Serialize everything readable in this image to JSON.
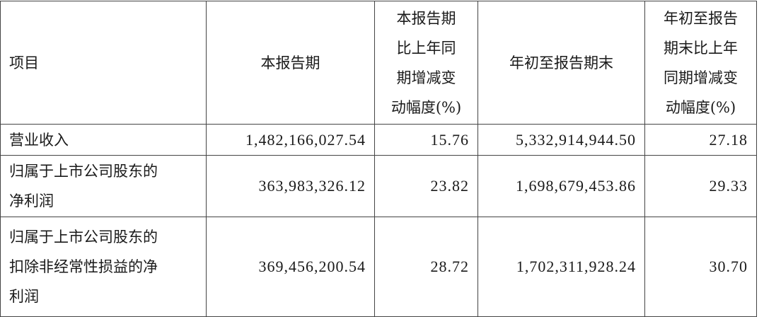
{
  "headers": [
    [
      "项目"
    ],
    [
      "本报告期"
    ],
    [
      "本报告期",
      "比上年同",
      "期增减变",
      "动幅度(%)"
    ],
    [
      "年初至报告期末"
    ],
    [
      "年初至报告",
      "期末比上年",
      "同期增减变",
      "动幅度(%)"
    ]
  ],
  "rows": [
    {
      "label": [
        "营业收入"
      ],
      "current": "1,482,166,027.54",
      "current_change": "15.76",
      "ytd": "5,332,914,944.50",
      "ytd_change": "27.18"
    },
    {
      "label": [
        "归属于上市公司股东的",
        "净利润"
      ],
      "current": "363,983,326.12",
      "current_change": "23.82",
      "ytd": "1,698,679,453.86",
      "ytd_change": "29.33"
    },
    {
      "label": [
        "归属于上市公司股东的",
        "扣除非经常性损益的净",
        "利润"
      ],
      "current": "369,456,200.54",
      "current_change": "28.72",
      "ytd": "1,702,311,928.24",
      "ytd_change": "30.70"
    }
  ]
}
